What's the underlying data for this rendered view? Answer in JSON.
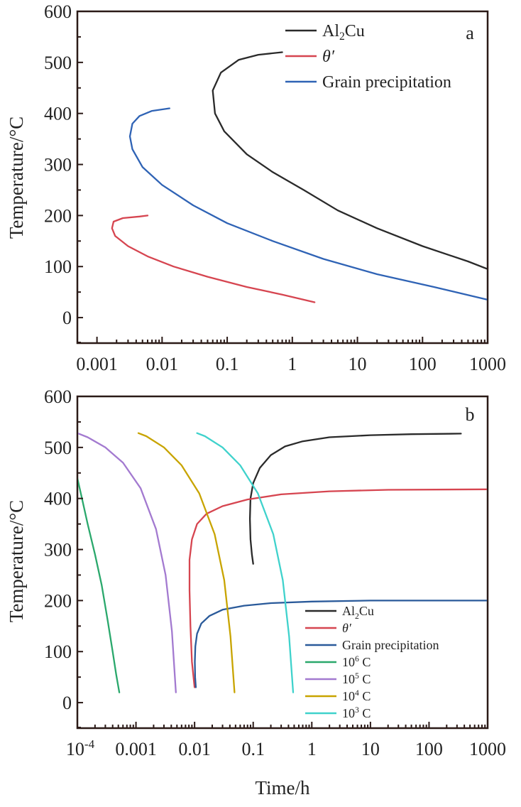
{
  "chart_data": [
    {
      "panel_label": "a",
      "type": "line",
      "xscale": "log",
      "xlim": [
        0.0005,
        1000
      ],
      "ylim": [
        -50,
        600
      ],
      "xticks": [
        "0.001",
        "0.01",
        "0.1",
        "1",
        "10",
        "100",
        "1000"
      ],
      "yticks": [
        "0",
        "100",
        "200",
        "300",
        "400",
        "500",
        "600"
      ],
      "ylabel": "Temperature/°C",
      "xlabel": "",
      "legend_position": "top-right",
      "series": [
        {
          "name": "Al₂Cu",
          "color": "#2a2a2a",
          "x": [
            0.7,
            0.3,
            0.15,
            0.08,
            0.06,
            0.065,
            0.09,
            0.2,
            0.5,
            1.5,
            5,
            20,
            100,
            500,
            1000
          ],
          "y": [
            520,
            515,
            505,
            480,
            445,
            400,
            365,
            320,
            285,
            250,
            210,
            175,
            140,
            110,
            95
          ]
        },
        {
          "name": "θ′",
          "color": "#d64550",
          "x": [
            0.006,
            0.0045,
            0.0025,
            0.0018,
            0.0017,
            0.0019,
            0.003,
            0.006,
            0.015,
            0.05,
            0.2,
            0.7,
            2.2
          ],
          "y": [
            200,
            198,
            195,
            188,
            175,
            160,
            140,
            120,
            100,
            80,
            60,
            45,
            30
          ]
        },
        {
          "name": "Grain precipitation",
          "color": "#2f63b5",
          "x": [
            0.013,
            0.007,
            0.0045,
            0.0035,
            0.0032,
            0.0035,
            0.005,
            0.01,
            0.03,
            0.1,
            0.5,
            3,
            20,
            150,
            1000
          ],
          "y": [
            410,
            405,
            395,
            380,
            355,
            330,
            295,
            260,
            220,
            185,
            150,
            115,
            85,
            60,
            35
          ]
        }
      ]
    },
    {
      "panel_label": "b",
      "type": "line",
      "xscale": "log",
      "xlim": [
        0.0001,
        1000
      ],
      "ylim": [
        -50,
        600
      ],
      "xticks": [
        "10-4",
        "0.001",
        "0.01",
        "0.1",
        "1",
        "10",
        "100",
        "1000"
      ],
      "yticks": [
        "0",
        "100",
        "200",
        "300",
        "400",
        "500",
        "600"
      ],
      "ylabel": "Temperature/°C",
      "xlabel": "Time/h",
      "legend_position": "bottom-right",
      "series": [
        {
          "name": "Al₂Cu",
          "color": "#2a2a2a",
          "x": [
            0.1,
            0.095,
            0.09,
            0.088,
            0.09,
            0.1,
            0.13,
            0.2,
            0.35,
            0.7,
            2,
            10,
            50,
            350
          ],
          "y": [
            272,
            290,
            320,
            360,
            400,
            430,
            460,
            485,
            502,
            512,
            520,
            524,
            526,
            527
          ]
        },
        {
          "name": "θ′",
          "color": "#d64550",
          "x": [
            0.01,
            0.009,
            0.0085,
            0.0082,
            0.0082,
            0.009,
            0.011,
            0.016,
            0.03,
            0.08,
            0.3,
            2,
            20,
            1000
          ],
          "y": [
            30,
            80,
            150,
            220,
            280,
            320,
            350,
            370,
            385,
            398,
            408,
            414,
            417,
            418
          ]
        },
        {
          "name": "Grain precipitation",
          "color": "#2a5a9a",
          "x": [
            0.0105,
            0.0102,
            0.0101,
            0.0103,
            0.011,
            0.013,
            0.018,
            0.03,
            0.07,
            0.2,
            1,
            10,
            1000
          ],
          "y": [
            30,
            50,
            80,
            110,
            135,
            155,
            170,
            182,
            190,
            195,
            198,
            200,
            200
          ]
        },
        {
          "name": "10⁶ C",
          "color": "#2aa86c",
          "x": [
            0.0001,
            0.00012,
            0.00015,
            0.0002,
            0.00026,
            0.00033,
            0.0004,
            0.00046,
            0.00052
          ],
          "y": [
            440,
            400,
            350,
            290,
            230,
            160,
            100,
            55,
            20
          ]
        },
        {
          "name": "10⁵ C",
          "color": "#a37ad0",
          "x": [
            0.0001,
            0.00015,
            0.0003,
            0.0006,
            0.0012,
            0.0022,
            0.0032,
            0.0041,
            0.0048
          ],
          "y": [
            528,
            520,
            500,
            470,
            420,
            340,
            250,
            140,
            20
          ]
        },
        {
          "name": "10⁴ C",
          "color": "#c8a400",
          "x": [
            0.0011,
            0.0015,
            0.003,
            0.006,
            0.012,
            0.022,
            0.032,
            0.041,
            0.048
          ],
          "y": [
            528,
            522,
            500,
            465,
            410,
            330,
            240,
            130,
            20
          ]
        },
        {
          "name": "10³ C",
          "color": "#3fd2cc",
          "x": [
            0.011,
            0.015,
            0.03,
            0.06,
            0.12,
            0.22,
            0.32,
            0.41,
            0.48
          ],
          "y": [
            528,
            522,
            500,
            465,
            410,
            330,
            240,
            130,
            20
          ]
        }
      ]
    }
  ]
}
